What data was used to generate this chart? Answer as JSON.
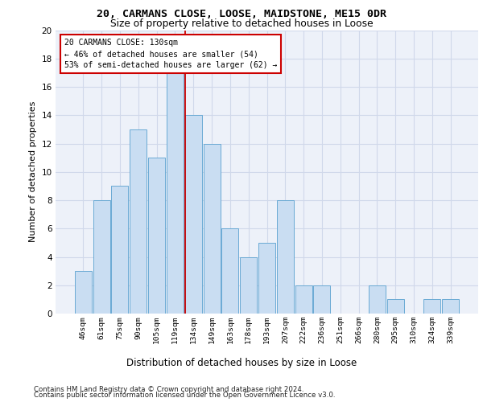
{
  "title1": "20, CARMANS CLOSE, LOOSE, MAIDSTONE, ME15 0DR",
  "title2": "Size of property relative to detached houses in Loose",
  "xlabel": "Distribution of detached houses by size in Loose",
  "ylabel": "Number of detached properties",
  "categories": [
    "46sqm",
    "61sqm",
    "75sqm",
    "90sqm",
    "105sqm",
    "119sqm",
    "134sqm",
    "149sqm",
    "163sqm",
    "178sqm",
    "193sqm",
    "207sqm",
    "222sqm",
    "236sqm",
    "251sqm",
    "266sqm",
    "280sqm",
    "295sqm",
    "310sqm",
    "324sqm",
    "339sqm"
  ],
  "values": [
    3,
    8,
    9,
    13,
    11,
    17,
    14,
    12,
    6,
    4,
    5,
    8,
    2,
    2,
    0,
    0,
    2,
    1,
    0,
    1,
    1
  ],
  "bar_color": "#c9ddf2",
  "bar_edge_color": "#6aaad4",
  "vline_color": "#cc0000",
  "vline_x": 5.55,
  "annotation_title": "20 CARMANS CLOSE: 130sqm",
  "annotation_line1": "← 46% of detached houses are smaller (54)",
  "annotation_line2": "53% of semi-detached houses are larger (62) →",
  "annotation_box_color": "#ffffff",
  "annotation_box_edge": "#cc0000",
  "footer1": "Contains HM Land Registry data © Crown copyright and database right 2024.",
  "footer2": "Contains public sector information licensed under the Open Government Licence v3.0.",
  "ylim": [
    0,
    20
  ],
  "yticks": [
    0,
    2,
    4,
    6,
    8,
    10,
    12,
    14,
    16,
    18,
    20
  ],
  "grid_color": "#d0d8ea",
  "bg_color": "#edf1f9"
}
